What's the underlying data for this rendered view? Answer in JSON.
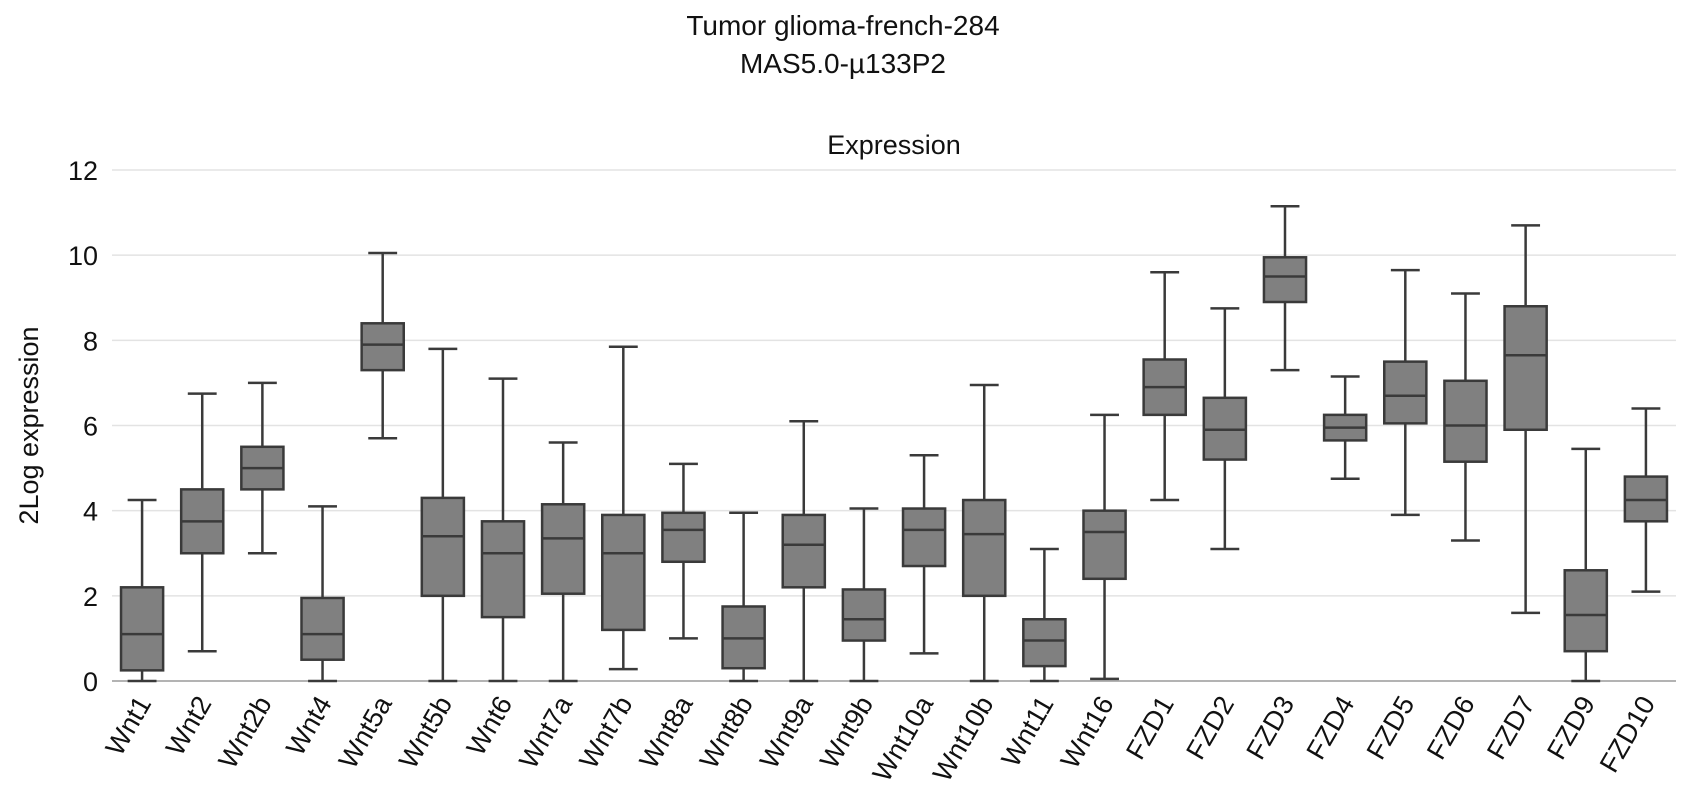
{
  "chart_data": {
    "type": "box",
    "title": "Tumor glioma-french-284",
    "subtitle": "MAS5.0-µ133P2",
    "panel_label": "Expression",
    "xlabel": "",
    "ylabel": "2Log expression",
    "ylim": [
      0,
      12
    ],
    "yticks": [
      0,
      2,
      4,
      6,
      8,
      10,
      12
    ],
    "grid": true,
    "box_fill": "#808080",
    "box_stroke": "#3a3a3a",
    "grid_color": "#e3e3e3",
    "categories": [
      "Wnt1",
      "Wnt2",
      "Wnt2b",
      "Wnt4",
      "Wnt5a",
      "Wnt5b",
      "Wnt6",
      "Wnt7a",
      "Wnt7b",
      "Wnt8a",
      "Wnt8b",
      "Wnt9a",
      "Wnt9b",
      "Wnt10a",
      "Wnt10b",
      "Wnt11",
      "Wnt16",
      "FZD1",
      "FZD2",
      "FZD3",
      "FZD4",
      "FZD5",
      "FZD6",
      "FZD7",
      "FZD9",
      "FZD10"
    ],
    "boxes": [
      {
        "min": 0.0,
        "q1": 0.25,
        "median": 1.1,
        "q3": 2.2,
        "max": 4.25
      },
      {
        "min": 0.7,
        "q1": 3.0,
        "median": 3.75,
        "q3": 4.5,
        "max": 6.75
      },
      {
        "min": 3.0,
        "q1": 4.5,
        "median": 5.0,
        "q3": 5.5,
        "max": 7.0
      },
      {
        "min": 0.0,
        "q1": 0.5,
        "median": 1.1,
        "q3": 1.95,
        "max": 4.1
      },
      {
        "min": 5.7,
        "q1": 7.3,
        "median": 7.9,
        "q3": 8.4,
        "max": 10.05
      },
      {
        "min": 0.0,
        "q1": 2.0,
        "median": 3.4,
        "q3": 4.3,
        "max": 7.8
      },
      {
        "min": 0.0,
        "q1": 1.5,
        "median": 3.0,
        "q3": 3.75,
        "max": 7.1
      },
      {
        "min": 0.0,
        "q1": 2.05,
        "median": 3.35,
        "q3": 4.15,
        "max": 5.6
      },
      {
        "min": 0.28,
        "q1": 1.2,
        "median": 3.0,
        "q3": 3.9,
        "max": 7.85
      },
      {
        "min": 1.0,
        "q1": 2.8,
        "median": 3.55,
        "q3": 3.95,
        "max": 5.1
      },
      {
        "min": 0.0,
        "q1": 0.3,
        "median": 1.0,
        "q3": 1.75,
        "max": 3.95
      },
      {
        "min": 0.0,
        "q1": 2.2,
        "median": 3.2,
        "q3": 3.9,
        "max": 6.1
      },
      {
        "min": 0.0,
        "q1": 0.95,
        "median": 1.45,
        "q3": 2.15,
        "max": 4.05
      },
      {
        "min": 0.65,
        "q1": 2.7,
        "median": 3.55,
        "q3": 4.05,
        "max": 5.3
      },
      {
        "min": 0.0,
        "q1": 2.0,
        "median": 3.45,
        "q3": 4.25,
        "max": 6.95
      },
      {
        "min": 0.0,
        "q1": 0.35,
        "median": 0.95,
        "q3": 1.45,
        "max": 3.1
      },
      {
        "min": 0.05,
        "q1": 2.4,
        "median": 3.5,
        "q3": 4.0,
        "max": 6.25
      },
      {
        "min": 4.25,
        "q1": 6.25,
        "median": 6.9,
        "q3": 7.55,
        "max": 9.6
      },
      {
        "min": 3.1,
        "q1": 5.2,
        "median": 5.9,
        "q3": 6.65,
        "max": 8.75
      },
      {
        "min": 7.3,
        "q1": 8.9,
        "median": 9.5,
        "q3": 9.95,
        "max": 11.15
      },
      {
        "min": 4.75,
        "q1": 5.65,
        "median": 5.95,
        "q3": 6.25,
        "max": 7.15
      },
      {
        "min": 3.9,
        "q1": 6.05,
        "median": 6.7,
        "q3": 7.5,
        "max": 9.65
      },
      {
        "min": 3.3,
        "q1": 5.15,
        "median": 6.0,
        "q3": 7.05,
        "max": 9.1
      },
      {
        "min": 1.6,
        "q1": 5.9,
        "median": 7.65,
        "q3": 8.8,
        "max": 10.7
      },
      {
        "min": 0.0,
        "q1": 0.7,
        "median": 1.55,
        "q3": 2.6,
        "max": 5.45
      },
      {
        "min": 2.1,
        "q1": 3.75,
        "median": 4.25,
        "q3": 4.8,
        "max": 6.4
      }
    ]
  }
}
